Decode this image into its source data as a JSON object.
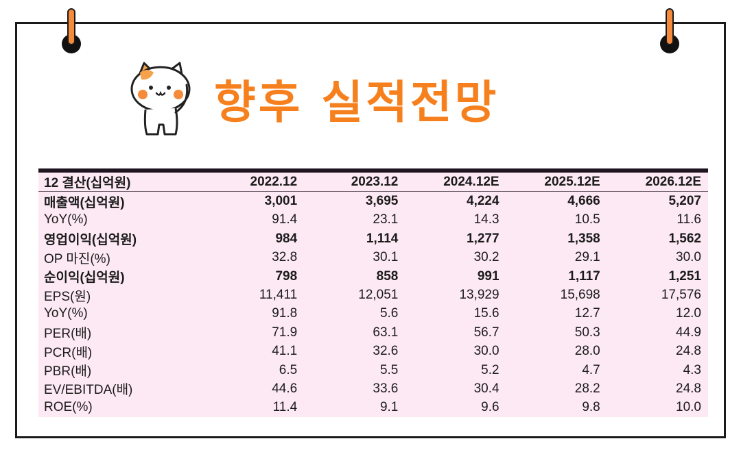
{
  "title": "향후 실적전망",
  "table": {
    "header": [
      "12 결산(십억원)",
      "2022.12",
      "2023.12",
      "2024.12E",
      "2025.12E",
      "2026.12E"
    ],
    "rows": [
      {
        "label": "매출액(십억원)",
        "bold": true,
        "values": [
          "3,001",
          "3,695",
          "4,224",
          "4,666",
          "5,207"
        ]
      },
      {
        "label": "YoY(%)",
        "bold": false,
        "values": [
          "91.4",
          "23.1",
          "14.3",
          "10.5",
          "11.6"
        ]
      },
      {
        "label": "영업이익(십억원)",
        "bold": true,
        "values": [
          "984",
          "1,114",
          "1,277",
          "1,358",
          "1,562"
        ]
      },
      {
        "label": "OP 마진(%)",
        "bold": false,
        "values": [
          "32.8",
          "30.1",
          "30.2",
          "29.1",
          "30.0"
        ]
      },
      {
        "label": "순이익(십억원)",
        "bold": true,
        "values": [
          "798",
          "858",
          "991",
          "1,117",
          "1,251"
        ]
      },
      {
        "label": "EPS(원)",
        "bold": false,
        "values": [
          "11,411",
          "12,051",
          "13,929",
          "15,698",
          "17,576"
        ]
      },
      {
        "label": "YoY(%)",
        "bold": false,
        "values": [
          "91.8",
          "5.6",
          "15.6",
          "12.7",
          "12.0"
        ]
      },
      {
        "label": "PER(배)",
        "bold": false,
        "values": [
          "71.9",
          "63.1",
          "56.7",
          "50.3",
          "44.9"
        ]
      },
      {
        "label": "PCR(배)",
        "bold": false,
        "values": [
          "41.1",
          "32.6",
          "30.0",
          "28.0",
          "24.8"
        ]
      },
      {
        "label": "PBR(배)",
        "bold": false,
        "values": [
          "6.5",
          "5.5",
          "5.2",
          "4.7",
          "4.3"
        ]
      },
      {
        "label": "EV/EBITDA(배)",
        "bold": false,
        "values": [
          "44.6",
          "33.6",
          "30.4",
          "28.2",
          "24.8"
        ]
      },
      {
        "label": "ROE(%)",
        "bold": false,
        "values": [
          "11.4",
          "9.1",
          "9.6",
          "9.8",
          "10.0"
        ]
      }
    ]
  },
  "colors": {
    "title": "#f6801e",
    "table_bg": "#fde9f3",
    "frame": "#1a1a1a",
    "pin": "#f58a3a"
  }
}
